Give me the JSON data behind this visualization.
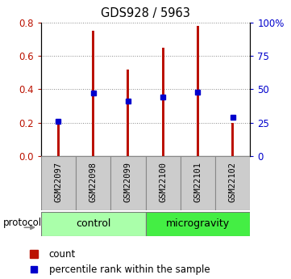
{
  "title": "GDS928 / 5963",
  "samples": [
    "GSM22097",
    "GSM22098",
    "GSM22099",
    "GSM22100",
    "GSM22101",
    "GSM22102"
  ],
  "red_values": [
    0.2,
    0.75,
    0.52,
    0.65,
    0.78,
    0.2
  ],
  "blue_values": [
    26,
    47,
    41,
    44,
    48,
    29
  ],
  "groups": [
    {
      "label": "control",
      "indices": [
        0,
        1,
        2
      ],
      "color": "#aaffaa"
    },
    {
      "label": "microgravity",
      "indices": [
        3,
        4,
        5
      ],
      "color": "#44ee44"
    }
  ],
  "left_ylim": [
    0,
    0.8
  ],
  "right_ylim": [
    0,
    100
  ],
  "left_yticks": [
    0,
    0.2,
    0.4,
    0.6,
    0.8
  ],
  "right_yticks": [
    0,
    25,
    50,
    75,
    100
  ],
  "right_yticklabels": [
    "0",
    "25",
    "50",
    "75",
    "100%"
  ],
  "bar_color": "#bb1100",
  "marker_color": "#0000cc",
  "protocol_label": "protocol",
  "legend_count": "count",
  "legend_percentile": "percentile rank within the sample",
  "bar_width": 0.07
}
